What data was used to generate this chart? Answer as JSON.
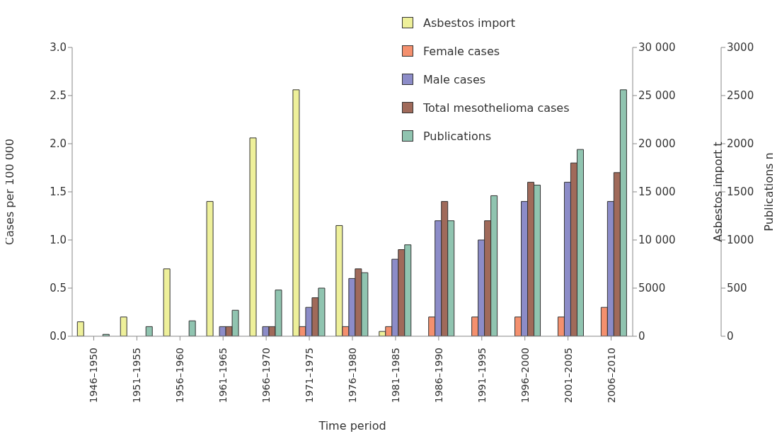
{
  "chart_data": {
    "type": "bar",
    "xlabel": "Time period",
    "ylabel": "Cases per 100 000",
    "y2label": "Asbestos import t",
    "y3label": "Publications n",
    "categories": [
      "1946–1950",
      "1951–1955",
      "1956–1960",
      "1961–1965",
      "1966–1970",
      "1971–1975",
      "1976–1980",
      "1981–1985",
      "1986–1990",
      "1991–1995",
      "1996–2000",
      "2001–2005",
      "2006–2010"
    ],
    "series": [
      {
        "name": "Asbestos import",
        "color": "#eef09a",
        "axis": "y2",
        "values": [
          1500,
          2000,
          7000,
          14000,
          20600,
          25600,
          11500,
          500,
          null,
          null,
          null,
          null,
          null
        ]
      },
      {
        "name": "Female cases",
        "color": "#f4906e",
        "values": [
          null,
          null,
          null,
          null,
          null,
          0.1,
          0.1,
          0.1,
          0.2,
          0.2,
          0.2,
          0.2,
          0.3
        ]
      },
      {
        "name": "Male cases",
        "color": "#8c8cc8",
        "values": [
          null,
          null,
          null,
          0.1,
          0.1,
          0.3,
          0.6,
          0.8,
          1.2,
          1.0,
          1.4,
          1.6,
          1.4
        ]
      },
      {
        "name": "Total mesothelioma cases",
        "color": "#a06a5a",
        "values": [
          null,
          null,
          null,
          0.1,
          0.1,
          0.4,
          0.7,
          0.9,
          1.4,
          1.2,
          1.6,
          1.8,
          1.7
        ]
      },
      {
        "name": "Publications",
        "color": "#90c4b0",
        "axis": "y3",
        "values": [
          20,
          100,
          160,
          270,
          480,
          500,
          660,
          950,
          1200,
          1460,
          1570,
          1940,
          2560
        ]
      }
    ],
    "ylim": [
      0,
      3
    ],
    "yticks": [
      {
        "value": 0,
        "label": "0.0"
      },
      0.5,
      {
        "value": 1,
        "label": "1.0"
      },
      1.5,
      {
        "value": 2,
        "label": "2.0"
      },
      2.5,
      {
        "value": 3,
        "label": "3.0"
      }
    ],
    "y2lim": [
      0,
      30000
    ],
    "y2ticks": [
      0,
      5000,
      {
        "value": 10000,
        "label": "10 000"
      },
      {
        "value": 15000,
        "label": "15 000"
      },
      {
        "value": 20000,
        "label": "20 000"
      },
      {
        "value": 25000,
        "label": "25 000"
      },
      {
        "value": 30000,
        "label": "30 000"
      }
    ],
    "y3lim": [
      0,
      3000
    ],
    "y3ticks": [
      0,
      500,
      1000,
      1500,
      2000,
      2500,
      3000
    ],
    "grid": false,
    "legend": "top"
  }
}
